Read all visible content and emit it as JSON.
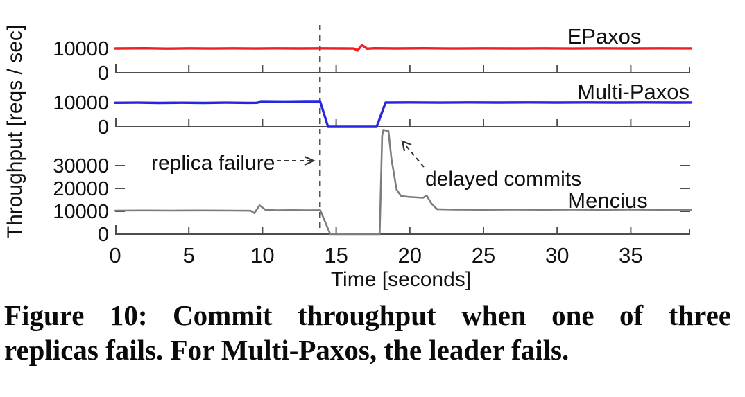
{
  "figure": {
    "caption_line1": "Figure 10:  Commit throughput when one of three",
    "caption_line2": "replicas fails. For Multi-Paxos, the leader fails."
  },
  "colors": {
    "epaxos": "#ee2020",
    "multipaxos": "#2626e0",
    "mencius": "#7d7d7d",
    "axis": "#4d4d4d",
    "text": "#111111",
    "event_line": "#555555"
  },
  "chart_data": {
    "type": "line",
    "title": "",
    "xlabel": "Time [seconds]",
    "ylabel": "Throughput [reqs / sec]",
    "xlim": [
      0,
      39.1
    ],
    "x_ticks": [
      0,
      5,
      10,
      15,
      20,
      25,
      30,
      35
    ],
    "grid": false,
    "legend_position": "labels-near-lines",
    "panels": [
      {
        "name": "EPaxos",
        "color": "#ee2020",
        "ylim": [
          0,
          19500
        ],
        "y_ticks": [
          0,
          10000
        ],
        "points": [
          [
            0,
            10000
          ],
          [
            2,
            10080
          ],
          [
            3.5,
            9950
          ],
          [
            5,
            10050
          ],
          [
            6.5,
            9960
          ],
          [
            8,
            10050
          ],
          [
            9.5,
            9970
          ],
          [
            11,
            10050
          ],
          [
            12.5,
            10000
          ],
          [
            14,
            10060
          ],
          [
            15.5,
            10000
          ],
          [
            16.2,
            9960
          ],
          [
            16.45,
            9150
          ],
          [
            16.75,
            11400
          ],
          [
            17.1,
            9900
          ],
          [
            17.6,
            10080
          ],
          [
            19,
            10000
          ],
          [
            21,
            10080
          ],
          [
            23,
            9960
          ],
          [
            25,
            10060
          ],
          [
            27,
            10000
          ],
          [
            29,
            10060
          ],
          [
            31,
            9970
          ],
          [
            33,
            10060
          ],
          [
            35,
            10000
          ],
          [
            37,
            10050
          ],
          [
            39.1,
            10020
          ]
        ]
      },
      {
        "name": "Multi-Paxos",
        "color": "#2626e0",
        "ylim": [
          0,
          19500
        ],
        "y_ticks": [
          0,
          10000
        ],
        "points": [
          [
            0,
            9900
          ],
          [
            1.5,
            9960
          ],
          [
            3,
            9850
          ],
          [
            4.5,
            9940
          ],
          [
            6,
            9870
          ],
          [
            7.5,
            9960
          ],
          [
            9,
            9880
          ],
          [
            9.6,
            9900
          ],
          [
            9.9,
            10250
          ],
          [
            11.5,
            10200
          ],
          [
            13,
            10280
          ],
          [
            13.92,
            10280
          ],
          [
            14.45,
            0
          ],
          [
            17.75,
            0
          ],
          [
            18.35,
            10000
          ],
          [
            20,
            10060
          ],
          [
            22,
            9970
          ],
          [
            24,
            10060
          ],
          [
            26,
            10000
          ],
          [
            28,
            10060
          ],
          [
            30,
            10000
          ],
          [
            32,
            10060
          ],
          [
            34,
            10000
          ],
          [
            36,
            10050
          ],
          [
            38,
            10000
          ],
          [
            39.1,
            10030
          ]
        ]
      },
      {
        "name": "Mencius",
        "color": "#7d7d7d",
        "ylim": [
          0,
          46000
        ],
        "y_ticks": [
          0,
          10000,
          20000,
          30000
        ],
        "points": [
          [
            0,
            10300
          ],
          [
            2,
            10360
          ],
          [
            4,
            10300
          ],
          [
            6,
            10360
          ],
          [
            8,
            10310
          ],
          [
            9.2,
            10250
          ],
          [
            9.45,
            9200
          ],
          [
            9.8,
            12600
          ],
          [
            10.2,
            10650
          ],
          [
            11,
            10450
          ],
          [
            12,
            10520
          ],
          [
            13,
            10460
          ],
          [
            13.92,
            10500
          ],
          [
            14.6,
            0
          ],
          [
            17.95,
            0
          ],
          [
            18.12,
            43000
          ],
          [
            18.2,
            45600
          ],
          [
            18.55,
            45100
          ],
          [
            18.75,
            33000
          ],
          [
            19.1,
            19500
          ],
          [
            19.4,
            16700
          ],
          [
            19.9,
            16300
          ],
          [
            20.5,
            16050
          ],
          [
            20.9,
            15900
          ],
          [
            21.15,
            16900
          ],
          [
            21.45,
            13500
          ],
          [
            21.85,
            10950
          ],
          [
            23,
            10750
          ],
          [
            25,
            10700
          ],
          [
            27,
            10760
          ],
          [
            29,
            10700
          ],
          [
            31,
            10760
          ],
          [
            33,
            10700
          ],
          [
            35,
            10760
          ],
          [
            37,
            10700
          ],
          [
            39.1,
            10740
          ]
        ]
      }
    ],
    "annotations": [
      {
        "label": "replica failure",
        "type": "event-line",
        "time_s": 13.9
      },
      {
        "label": "delayed commits",
        "type": "callout",
        "points_to": "Mencius throughput spike after recovery (t ≈ 18.3 s, ≈ 45000 reqs/sec)"
      }
    ]
  }
}
